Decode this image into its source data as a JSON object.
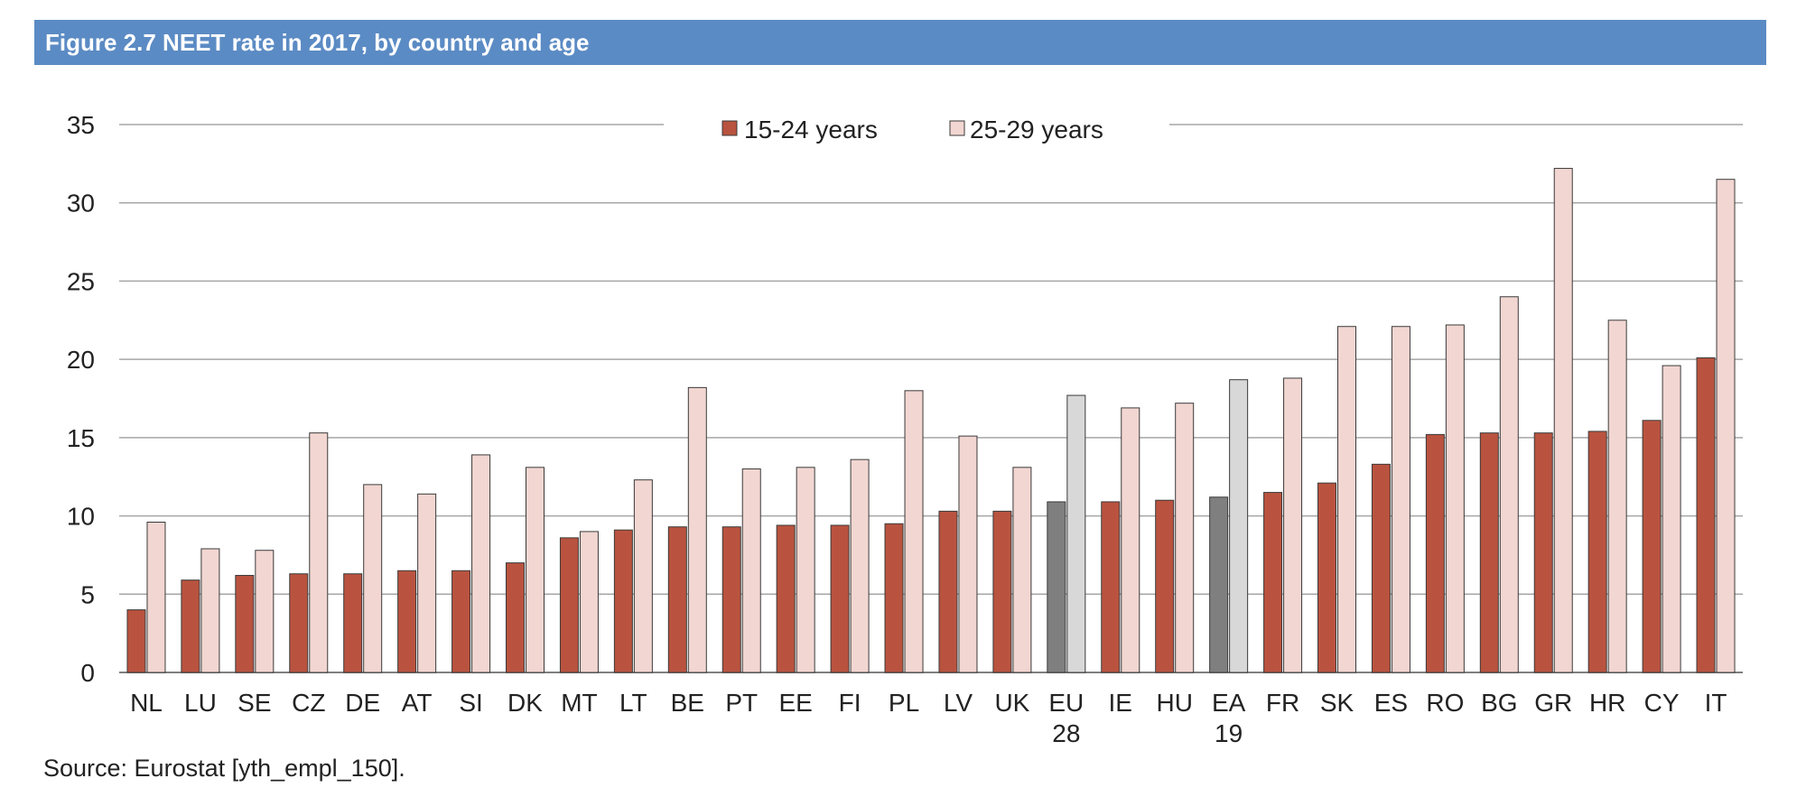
{
  "title": "Figure 2.7 NEET rate in 2017, by country and age",
  "source": "Source: Eurostat [yth_empl_150].",
  "colors": {
    "series1": "#b9533f",
    "series2": "#f2d6d1",
    "series1_highlight": "#7f7f7f",
    "series2_highlight": "#d8d8d8",
    "title_bg": "#5b8bc4",
    "grid": "#a6a6a6"
  },
  "chart_data": {
    "type": "bar",
    "categories": [
      "NL",
      "LU",
      "SE",
      "CZ",
      "DE",
      "AT",
      "SI",
      "DK",
      "MT",
      "LT",
      "BE",
      "PT",
      "EE",
      "FI",
      "PL",
      "LV",
      "UK",
      "EU 28",
      "IE",
      "HU",
      "EA 19",
      "FR",
      "SK",
      "ES",
      "RO",
      "BG",
      "GR",
      "HR",
      "CY",
      "IT"
    ],
    "highlighted_categories": [
      "EU 28",
      "EA 19"
    ],
    "series": [
      {
        "name": "15-24 years",
        "values": [
          4.0,
          5.9,
          6.2,
          6.3,
          6.3,
          6.5,
          6.5,
          7.0,
          8.6,
          9.1,
          9.3,
          9.3,
          9.4,
          9.4,
          9.5,
          10.3,
          10.3,
          10.9,
          10.9,
          11.0,
          11.2,
          11.5,
          12.1,
          13.3,
          15.2,
          15.3,
          15.3,
          15.4,
          16.1,
          20.1
        ]
      },
      {
        "name": "25-29 years",
        "values": [
          9.6,
          7.9,
          7.8,
          15.3,
          12.0,
          11.4,
          13.9,
          13.1,
          9.0,
          12.3,
          18.2,
          13.0,
          13.1,
          13.6,
          18.0,
          15.1,
          13.1,
          17.7,
          16.9,
          17.2,
          18.7,
          18.8,
          22.1,
          22.1,
          22.2,
          24.0,
          32.2,
          22.5,
          19.6,
          31.5
        ]
      }
    ],
    "yticks": [
      "0",
      "5",
      "10",
      "15",
      "20",
      "25",
      "30",
      "35"
    ],
    "ylim": [
      0,
      35
    ],
    "grid": true,
    "legend_position": "top-center"
  }
}
